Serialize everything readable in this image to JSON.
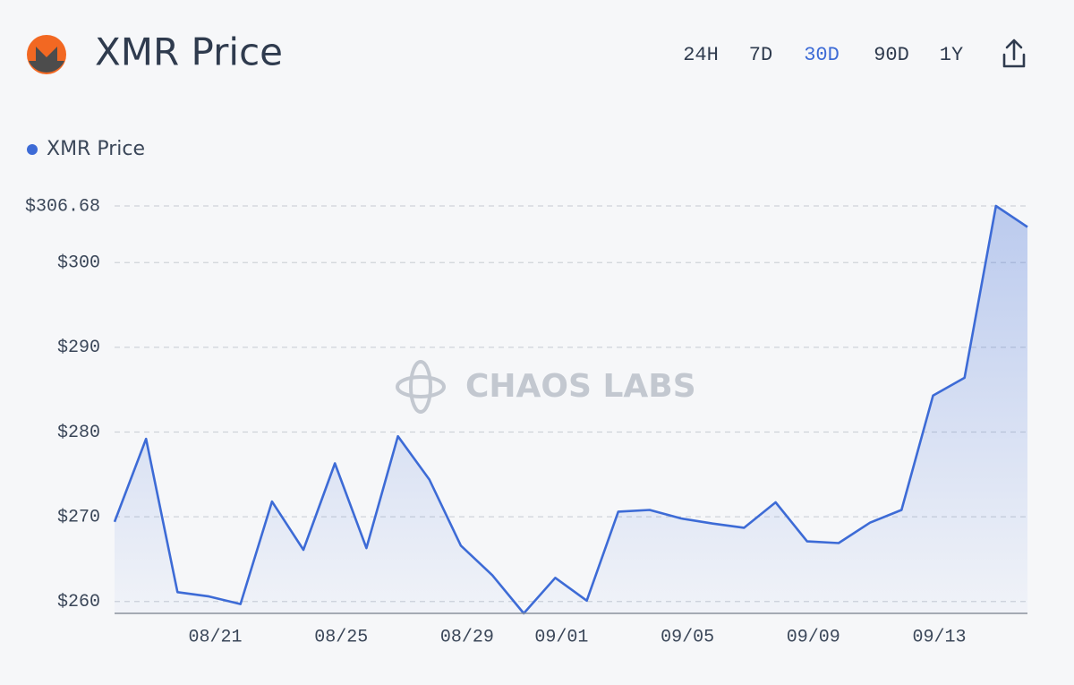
{
  "header": {
    "title": "XMR Price",
    "ranges": [
      "24H",
      "7D",
      "30D",
      "90D",
      "1Y"
    ],
    "active_range_index": 2
  },
  "watermark": "CHAOS LABS",
  "chart_data": {
    "type": "area",
    "categories": [
      null,
      null,
      null,
      "08/21",
      null,
      null,
      null,
      "08/25",
      null,
      null,
      null,
      "08/29",
      null,
      null,
      "09/01",
      null,
      null,
      null,
      "09/05",
      null,
      null,
      null,
      "09/09",
      null,
      null,
      null,
      "09/13",
      null,
      null,
      null
    ],
    "series": [
      {
        "name": "XMR Price",
        "color": "#3d6bd6",
        "values": [
          269.4,
          279.2,
          261.1,
          260.6,
          259.7,
          271.8,
          266.1,
          276.3,
          266.3,
          279.5,
          274.4,
          266.6,
          263.1,
          258.6,
          262.8,
          260.1,
          270.6,
          270.8,
          269.8,
          269.2,
          268.7,
          271.7,
          267.1,
          266.9,
          269.3,
          270.8,
          284.3,
          286.4,
          306.68,
          304.2
        ]
      }
    ],
    "ylim": [
      258.6,
      306.68
    ],
    "yticks": [
      {
        "value": 260,
        "label": "$260"
      },
      {
        "value": 270,
        "label": "$270"
      },
      {
        "value": 280,
        "label": "$280"
      },
      {
        "value": 290,
        "label": "$290"
      },
      {
        "value": 300,
        "label": "$300"
      },
      {
        "value": 306.68,
        "label": "$306.68"
      }
    ],
    "grid": true
  }
}
